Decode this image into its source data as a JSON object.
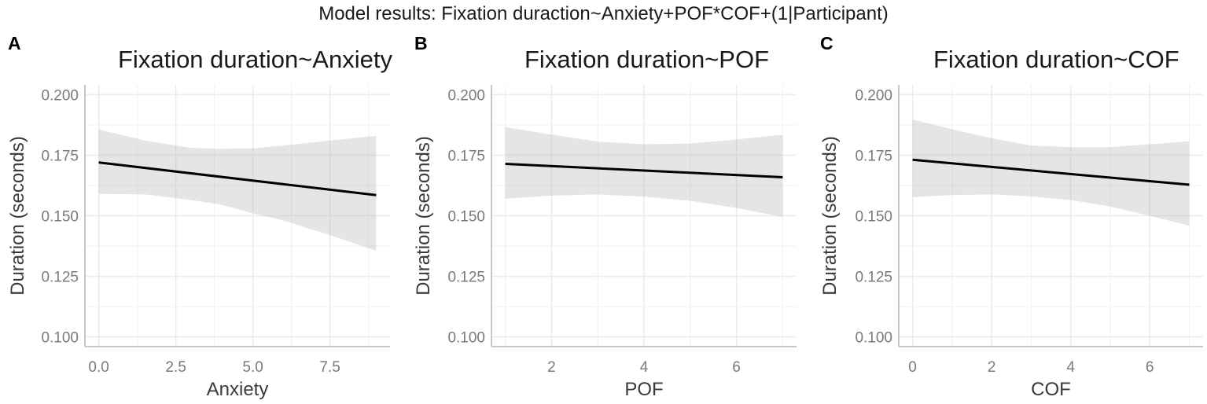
{
  "figure": {
    "suptitle": "Model results: Fixation duraction~Anxiety+POF*COF+(1|Participant)",
    "colors": {
      "line": "#000000",
      "ribbon": "#d9d9d9",
      "grid": "#ebebeb",
      "axis": "#c8c8c8",
      "tick_text": "#7a7a7a"
    }
  },
  "panels": [
    {
      "letter": "A",
      "title": "Fixation duration~Anxiety",
      "xlabel": "Anxiety",
      "ylabel": "Duration (seconds)",
      "xticks": [
        "0.0",
        "2.5",
        "5.0",
        "7.5"
      ],
      "yticks": [
        "0.100",
        "0.125",
        "0.150",
        "0.175",
        "0.200"
      ]
    },
    {
      "letter": "B",
      "title": "Fixation duration~POF",
      "xlabel": "POF",
      "ylabel": "Duration (seconds)",
      "xticks": [
        "2",
        "4",
        "6"
      ],
      "yticks": [
        "0.100",
        "0.125",
        "0.150",
        "0.175",
        "0.200"
      ]
    },
    {
      "letter": "C",
      "title": "Fixation duration~COF",
      "xlabel": "COF",
      "ylabel": "Duration (seconds)",
      "xticks": [
        "0",
        "2",
        "4",
        "6"
      ],
      "yticks": [
        "0.100",
        "0.125",
        "0.150",
        "0.175",
        "0.200"
      ]
    }
  ],
  "chart_data": [
    {
      "type": "line",
      "title": "Fixation duration~Anxiety",
      "xlabel": "Anxiety",
      "ylabel": "Duration (seconds)",
      "xlim": [
        -0.45,
        9.45
      ],
      "ylim": [
        0.096,
        0.204
      ],
      "x_ticks": [
        0.0,
        2.5,
        5.0,
        7.5
      ],
      "y_ticks": [
        0.1,
        0.125,
        0.15,
        0.175,
        0.2
      ],
      "grid": true,
      "series": [
        {
          "name": "fit",
          "x": [
            0,
            9
          ],
          "values": [
            0.172,
            0.1585
          ]
        }
      ],
      "ribbon": {
        "x": [
          0,
          1.5,
          3,
          4,
          5,
          6,
          7.5,
          9
        ],
        "upper": [
          0.1856,
          0.181,
          0.178,
          0.1776,
          0.1778,
          0.179,
          0.181,
          0.183
        ],
        "lower": [
          0.159,
          0.1588,
          0.1565,
          0.1545,
          0.151,
          0.148,
          0.142,
          0.1356
        ]
      }
    },
    {
      "type": "line",
      "title": "Fixation duration~POF",
      "xlabel": "POF",
      "ylabel": "Duration (seconds)",
      "xlim": [
        0.7,
        7.3
      ],
      "ylim": [
        0.096,
        0.204
      ],
      "x_ticks": [
        2,
        4,
        6
      ],
      "y_ticks": [
        0.1,
        0.125,
        0.15,
        0.175,
        0.2
      ],
      "grid": true,
      "series": [
        {
          "name": "fit",
          "x": [
            1,
            7
          ],
          "values": [
            0.1714,
            0.1659
          ]
        }
      ],
      "ribbon": {
        "x": [
          1,
          2,
          3,
          4,
          5,
          6,
          7
        ],
        "upper": [
          0.1866,
          0.1835,
          0.1806,
          0.1795,
          0.1798,
          0.1815,
          0.1834
        ],
        "lower": [
          0.157,
          0.1583,
          0.1588,
          0.1579,
          0.1562,
          0.1532,
          0.1495
        ]
      }
    },
    {
      "type": "line",
      "title": "Fixation duration~COF",
      "xlabel": "COF",
      "ylabel": "Duration (seconds)",
      "xlim": [
        -0.35,
        7.35
      ],
      "ylim": [
        0.096,
        0.204
      ],
      "x_ticks": [
        0,
        2,
        4,
        6
      ],
      "y_ticks": [
        0.1,
        0.125,
        0.15,
        0.175,
        0.2
      ],
      "grid": true,
      "series": [
        {
          "name": "fit",
          "x": [
            0,
            7
          ],
          "values": [
            0.1731,
            0.1628
          ]
        }
      ],
      "ribbon": {
        "x": [
          0,
          1,
          2,
          3,
          4,
          5,
          6,
          7
        ],
        "upper": [
          0.1897,
          0.1857,
          0.182,
          0.179,
          0.1783,
          0.1783,
          0.1795,
          0.1807
        ],
        "lower": [
          0.1577,
          0.1585,
          0.1588,
          0.158,
          0.1565,
          0.1538,
          0.15,
          0.1459
        ]
      }
    }
  ]
}
